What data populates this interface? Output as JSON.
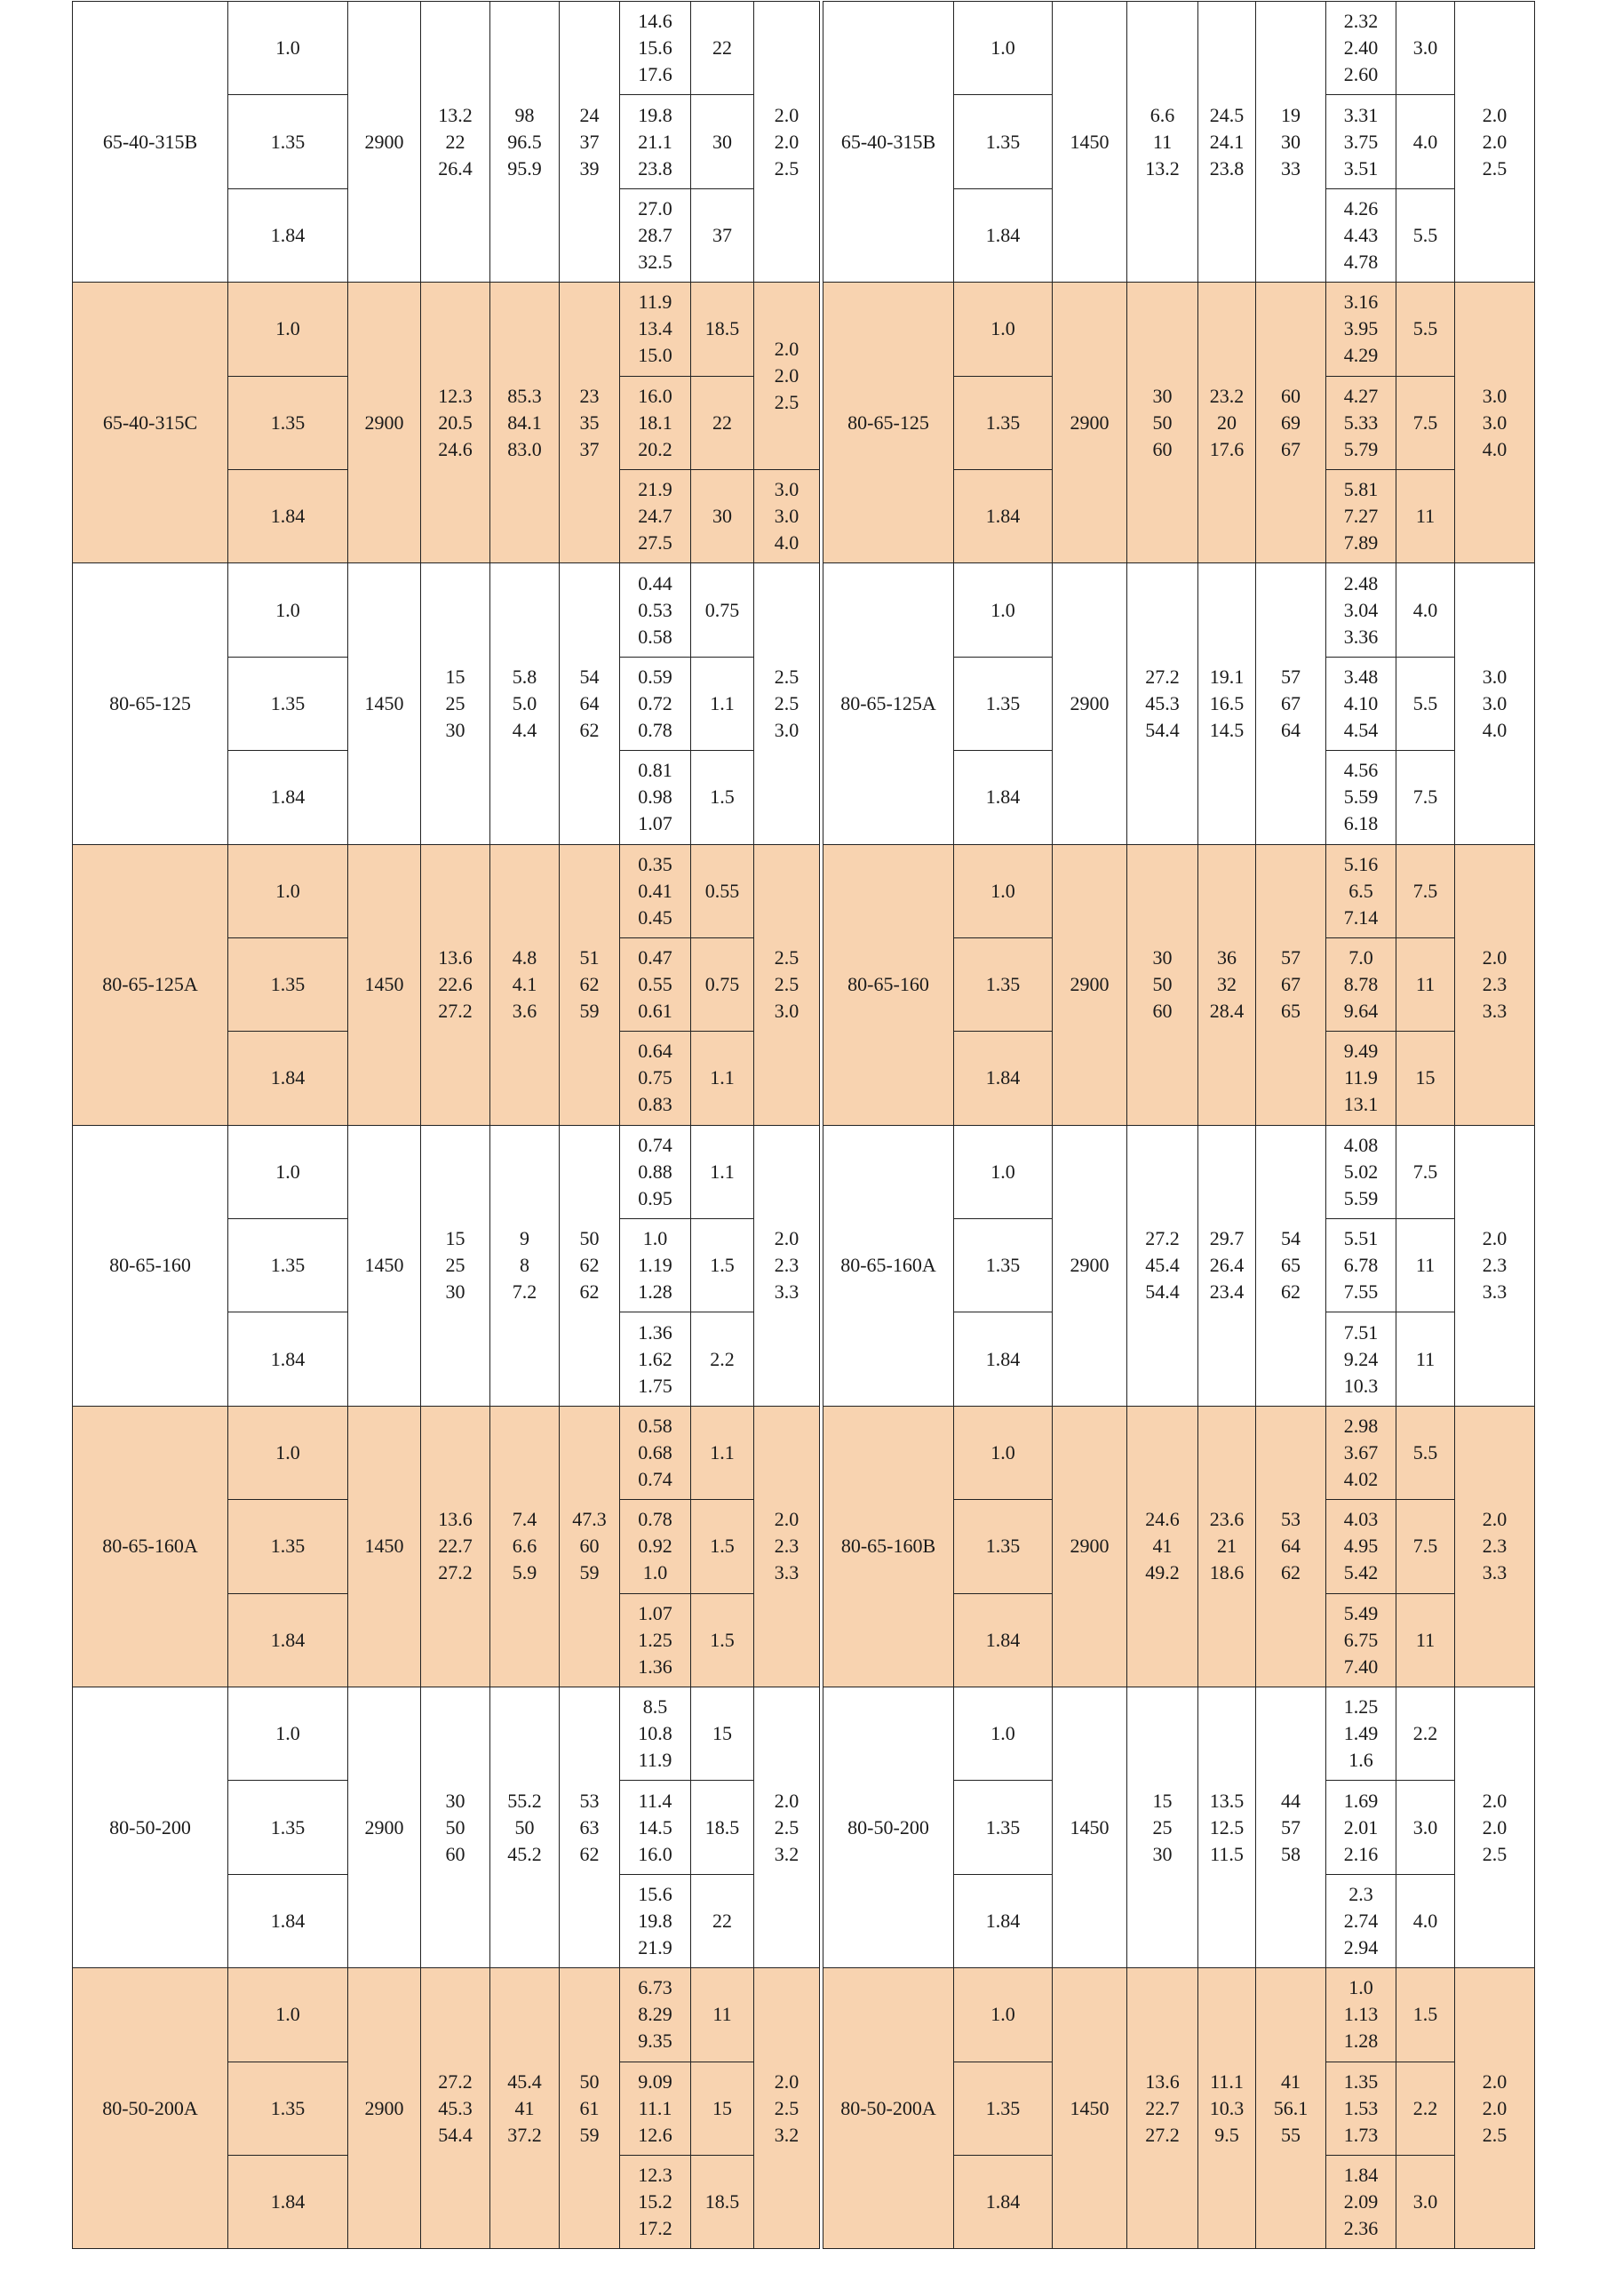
{
  "highlight_color": "#F8D3B0",
  "groups": [
    {
      "highlight": false,
      "left": {
        "model": "65-40-315B",
        "speed": "2900",
        "flow": [
          "13.2",
          "22",
          "26.4"
        ],
        "head": [
          "98",
          "96.5",
          "95.9"
        ],
        "efficiency": [
          "24",
          "37",
          "39"
        ],
        "rows": [
          {
            "density": "1.0",
            "power": [
              "14.6",
              "15.6",
              "17.6"
            ],
            "motor": "22"
          },
          {
            "density": "1.35",
            "power": [
              "19.8",
              "21.1",
              "23.8"
            ],
            "motor": "30"
          },
          {
            "density": "1.84",
            "power": [
              "27.0",
              "28.7",
              "32.5"
            ],
            "motor": "37"
          }
        ],
        "npsh": [
          {
            "span": 3,
            "values": [
              "2.0",
              "2.0",
              "2.5"
            ]
          }
        ]
      },
      "right": {
        "model": "65-40-315B",
        "speed": "1450",
        "flow": [
          "6.6",
          "11",
          "13.2"
        ],
        "head": [
          "24.5",
          "24.1",
          "23.8"
        ],
        "efficiency": [
          "19",
          "30",
          "33"
        ],
        "rows": [
          {
            "density": "1.0",
            "power": [
              "2.32",
              "2.40",
              "2.60"
            ],
            "motor": "3.0"
          },
          {
            "density": "1.35",
            "power": [
              "3.31",
              "3.75",
              "3.51"
            ],
            "motor": "4.0"
          },
          {
            "density": "1.84",
            "power": [
              "4.26",
              "4.43",
              "4.78"
            ],
            "motor": "5.5"
          }
        ],
        "npsh": [
          {
            "span": 3,
            "values": [
              "2.0",
              "2.0",
              "2.5"
            ]
          }
        ]
      }
    },
    {
      "highlight": true,
      "left": {
        "model": "65-40-315C",
        "speed": "2900",
        "flow": [
          "12.3",
          "20.5",
          "24.6"
        ],
        "head": [
          "85.3",
          "84.1",
          "83.0"
        ],
        "efficiency": [
          "23",
          "35",
          "37"
        ],
        "rows": [
          {
            "density": "1.0",
            "power": [
              "11.9",
              "13.4",
              "15.0"
            ],
            "motor": "18.5"
          },
          {
            "density": "1.35",
            "power": [
              "16.0",
              "18.1",
              "20.2"
            ],
            "motor": "22"
          },
          {
            "density": "1.84",
            "power": [
              "21.9",
              "24.7",
              "27.5"
            ],
            "motor": "30"
          }
        ],
        "npsh": [
          {
            "span": 2,
            "values": [
              "2.0",
              "2.0",
              "2.5"
            ]
          },
          {
            "span": 1,
            "values": [
              "3.0",
              "3.0",
              "4.0"
            ]
          }
        ]
      },
      "right": {
        "model": "80-65-125",
        "speed": "2900",
        "flow": [
          "30",
          "50",
          "60"
        ],
        "head": [
          "23.2",
          "20",
          "17.6"
        ],
        "efficiency": [
          "60",
          "69",
          "67"
        ],
        "rows": [
          {
            "density": "1.0",
            "power": [
              "3.16",
              "3.95",
              "4.29"
            ],
            "motor": "5.5"
          },
          {
            "density": "1.35",
            "power": [
              "4.27",
              "5.33",
              "5.79"
            ],
            "motor": "7.5"
          },
          {
            "density": "1.84",
            "power": [
              "5.81",
              "7.27",
              "7.89"
            ],
            "motor": "11"
          }
        ],
        "npsh": [
          {
            "span": 3,
            "values": [
              "3.0",
              "3.0",
              "4.0"
            ]
          }
        ]
      }
    },
    {
      "highlight": false,
      "left": {
        "model": "80-65-125",
        "speed": "1450",
        "flow": [
          "15",
          "25",
          "30"
        ],
        "head": [
          "5.8",
          "5.0",
          "4.4"
        ],
        "efficiency": [
          "54",
          "64",
          "62"
        ],
        "rows": [
          {
            "density": "1.0",
            "power": [
              "0.44",
              "0.53",
              "0.58"
            ],
            "motor": "0.75"
          },
          {
            "density": "1.35",
            "power": [
              "0.59",
              "0.72",
              "0.78"
            ],
            "motor": "1.1"
          },
          {
            "density": "1.84",
            "power": [
              "0.81",
              "0.98",
              "1.07"
            ],
            "motor": "1.5"
          }
        ],
        "npsh": [
          {
            "span": 3,
            "values": [
              "2.5",
              "2.5",
              "3.0"
            ]
          }
        ]
      },
      "right": {
        "model": "80-65-125A",
        "speed": "2900",
        "flow": [
          "27.2",
          "45.3",
          "54.4"
        ],
        "head": [
          "19.1",
          "16.5",
          "14.5"
        ],
        "efficiency": [
          "57",
          "67",
          "64"
        ],
        "rows": [
          {
            "density": "1.0",
            "power": [
              "2.48",
              "3.04",
              "3.36"
            ],
            "motor": "4.0"
          },
          {
            "density": "1.35",
            "power": [
              "3.48",
              "4.10",
              "4.54"
            ],
            "motor": "5.5"
          },
          {
            "density": "1.84",
            "power": [
              "4.56",
              "5.59",
              "6.18"
            ],
            "motor": "7.5"
          }
        ],
        "npsh": [
          {
            "span": 3,
            "values": [
              "3.0",
              "3.0",
              "4.0"
            ]
          }
        ]
      }
    },
    {
      "highlight": true,
      "left": {
        "model": "80-65-125A",
        "speed": "1450",
        "flow": [
          "13.6",
          "22.6",
          "27.2"
        ],
        "head": [
          "4.8",
          "4.1",
          "3.6"
        ],
        "efficiency": [
          "51",
          "62",
          "59"
        ],
        "rows": [
          {
            "density": "1.0",
            "power": [
              "0.35",
              "0.41",
              "0.45"
            ],
            "motor": "0.55"
          },
          {
            "density": "1.35",
            "power": [
              "0.47",
              "0.55",
              "0.61"
            ],
            "motor": "0.75"
          },
          {
            "density": "1.84",
            "power": [
              "0.64",
              "0.75",
              "0.83"
            ],
            "motor": "1.1"
          }
        ],
        "npsh": [
          {
            "span": 3,
            "values": [
              "2.5",
              "2.5",
              "3.0"
            ]
          }
        ]
      },
      "right": {
        "model": "80-65-160",
        "speed": "2900",
        "flow": [
          "30",
          "50",
          "60"
        ],
        "head": [
          "36",
          "32",
          "28.4"
        ],
        "efficiency": [
          "57",
          "67",
          "65"
        ],
        "rows": [
          {
            "density": "1.0",
            "power": [
              "5.16",
              "6.5",
              "7.14"
            ],
            "motor": "7.5"
          },
          {
            "density": "1.35",
            "power": [
              "7.0",
              "8.78",
              "9.64"
            ],
            "motor": "11"
          },
          {
            "density": "1.84",
            "power": [
              "9.49",
              "11.9",
              "13.1"
            ],
            "motor": "15"
          }
        ],
        "npsh": [
          {
            "span": 3,
            "values": [
              "2.0",
              "2.3",
              "3.3"
            ]
          }
        ]
      }
    },
    {
      "highlight": false,
      "left": {
        "model": "80-65-160",
        "speed": "1450",
        "flow": [
          "15",
          "25",
          "30"
        ],
        "head": [
          "9",
          "8",
          "7.2"
        ],
        "efficiency": [
          "50",
          "62",
          "62"
        ],
        "rows": [
          {
            "density": "1.0",
            "power": [
              "0.74",
              "0.88",
              "0.95"
            ],
            "motor": "1.1"
          },
          {
            "density": "1.35",
            "power": [
              "1.0",
              "1.19",
              "1.28"
            ],
            "motor": "1.5"
          },
          {
            "density": "1.84",
            "power": [
              "1.36",
              "1.62",
              "1.75"
            ],
            "motor": "2.2"
          }
        ],
        "npsh": [
          {
            "span": 3,
            "values": [
              "2.0",
              "2.3",
              "3.3"
            ]
          }
        ]
      },
      "right": {
        "model": "80-65-160A",
        "speed": "2900",
        "flow": [
          "27.2",
          "45.4",
          "54.4"
        ],
        "head": [
          "29.7",
          "26.4",
          "23.4"
        ],
        "efficiency": [
          "54",
          "65",
          "62"
        ],
        "rows": [
          {
            "density": "1.0",
            "power": [
              "4.08",
              "5.02",
              "5.59"
            ],
            "motor": "7.5"
          },
          {
            "density": "1.35",
            "power": [
              "5.51",
              "6.78",
              "7.55"
            ],
            "motor": "11"
          },
          {
            "density": "1.84",
            "power": [
              "7.51",
              "9.24",
              "10.3"
            ],
            "motor": "11"
          }
        ],
        "npsh": [
          {
            "span": 3,
            "values": [
              "2.0",
              "2.3",
              "3.3"
            ]
          }
        ]
      }
    },
    {
      "highlight": true,
      "left": {
        "model": "80-65-160A",
        "speed": "1450",
        "flow": [
          "13.6",
          "22.7",
          "27.2"
        ],
        "head": [
          "7.4",
          "6.6",
          "5.9"
        ],
        "efficiency": [
          "47.3",
          "60",
          "59"
        ],
        "rows": [
          {
            "density": "1.0",
            "power": [
              "0.58",
              "0.68",
              "0.74"
            ],
            "motor": "1.1"
          },
          {
            "density": "1.35",
            "power": [
              "0.78",
              "0.92",
              "1.0"
            ],
            "motor": "1.5"
          },
          {
            "density": "1.84",
            "power": [
              "1.07",
              "1.25",
              "1.36"
            ],
            "motor": "1.5"
          }
        ],
        "npsh": [
          {
            "span": 3,
            "values": [
              "2.0",
              "2.3",
              "3.3"
            ]
          }
        ]
      },
      "right": {
        "model": "80-65-160B",
        "speed": "2900",
        "flow": [
          "24.6",
          "41",
          "49.2"
        ],
        "head": [
          "23.6",
          "21",
          "18.6"
        ],
        "efficiency": [
          "53",
          "64",
          "62"
        ],
        "rows": [
          {
            "density": "1.0",
            "power": [
              "2.98",
              "3.67",
              "4.02"
            ],
            "motor": "5.5"
          },
          {
            "density": "1.35",
            "power": [
              "4.03",
              "4.95",
              "5.42"
            ],
            "motor": "7.5"
          },
          {
            "density": "1.84",
            "power": [
              "5.49",
              "6.75",
              "7.40"
            ],
            "motor": "11"
          }
        ],
        "npsh": [
          {
            "span": 3,
            "values": [
              "2.0",
              "2.3",
              "3.3"
            ]
          }
        ]
      }
    },
    {
      "highlight": false,
      "left": {
        "model": "80-50-200",
        "speed": "2900",
        "flow": [
          "30",
          "50",
          "60"
        ],
        "head": [
          "55.2",
          "50",
          "45.2"
        ],
        "efficiency": [
          "53",
          "63",
          "62"
        ],
        "rows": [
          {
            "density": "1.0",
            "power": [
              "8.5",
              "10.8",
              "11.9"
            ],
            "motor": "15"
          },
          {
            "density": "1.35",
            "power": [
              "11.4",
              "14.5",
              "16.0"
            ],
            "motor": "18.5"
          },
          {
            "density": "1.84",
            "power": [
              "15.6",
              "19.8",
              "21.9"
            ],
            "motor": "22"
          }
        ],
        "npsh": [
          {
            "span": 3,
            "values": [
              "2.0",
              "2.5",
              "3.2"
            ]
          }
        ]
      },
      "right": {
        "model": "80-50-200",
        "speed": "1450",
        "flow": [
          "15",
          "25",
          "30"
        ],
        "head": [
          "13.5",
          "12.5",
          "11.5"
        ],
        "efficiency": [
          "44",
          "57",
          "58"
        ],
        "rows": [
          {
            "density": "1.0",
            "power": [
              "1.25",
              "1.49",
              "1.6"
            ],
            "motor": "2.2"
          },
          {
            "density": "1.35",
            "power": [
              "1.69",
              "2.01",
              "2.16"
            ],
            "motor": "3.0"
          },
          {
            "density": "1.84",
            "power": [
              "2.3",
              "2.74",
              "2.94"
            ],
            "motor": "4.0"
          }
        ],
        "npsh": [
          {
            "span": 3,
            "values": [
              "2.0",
              "2.0",
              "2.5"
            ]
          }
        ]
      }
    },
    {
      "highlight": true,
      "left": {
        "model": "80-50-200A",
        "speed": "2900",
        "flow": [
          "27.2",
          "45.3",
          "54.4"
        ],
        "head": [
          "45.4",
          "41",
          "37.2"
        ],
        "efficiency": [
          "50",
          "61",
          "59"
        ],
        "rows": [
          {
            "density": "1.0",
            "power": [
              "6.73",
              "8.29",
              "9.35"
            ],
            "motor": "11"
          },
          {
            "density": "1.35",
            "power": [
              "9.09",
              "11.1",
              "12.6"
            ],
            "motor": "15"
          },
          {
            "density": "1.84",
            "power": [
              "12.3",
              "15.2",
              "17.2"
            ],
            "motor": "18.5"
          }
        ],
        "npsh": [
          {
            "span": 3,
            "values": [
              "2.0",
              "2.5",
              "3.2"
            ]
          }
        ]
      },
      "right": {
        "model": "80-50-200A",
        "speed": "1450",
        "flow": [
          "13.6",
          "22.7",
          "27.2"
        ],
        "head": [
          "11.1",
          "10.3",
          "9.5"
        ],
        "efficiency": [
          "41",
          "56.1",
          "55"
        ],
        "rows": [
          {
            "density": "1.0",
            "power": [
              "1.0",
              "1.13",
              "1.28"
            ],
            "motor": "1.5"
          },
          {
            "density": "1.35",
            "power": [
              "1.35",
              "1.53",
              "1.73"
            ],
            "motor": "2.2"
          },
          {
            "density": "1.84",
            "power": [
              "1.84",
              "2.09",
              "2.36"
            ],
            "motor": "3.0"
          }
        ],
        "npsh": [
          {
            "span": 3,
            "values": [
              "2.0",
              "2.0",
              "2.5"
            ]
          }
        ]
      }
    }
  ]
}
